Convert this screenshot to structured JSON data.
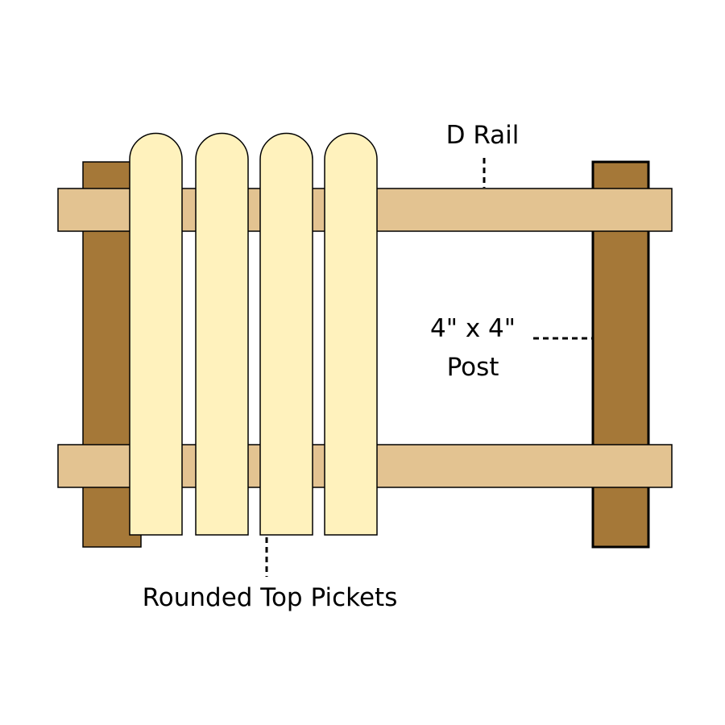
{
  "colors": {
    "post": "#a57838",
    "rail": "#e3c391",
    "picket": "#fff2bd",
    "outline": "#000000",
    "background": "#ffffff"
  },
  "labels": {
    "rail": "D Rail",
    "post_line1": "4\" x 4\"",
    "post_line2": "Post",
    "pickets": "Rounded Top Pickets"
  }
}
